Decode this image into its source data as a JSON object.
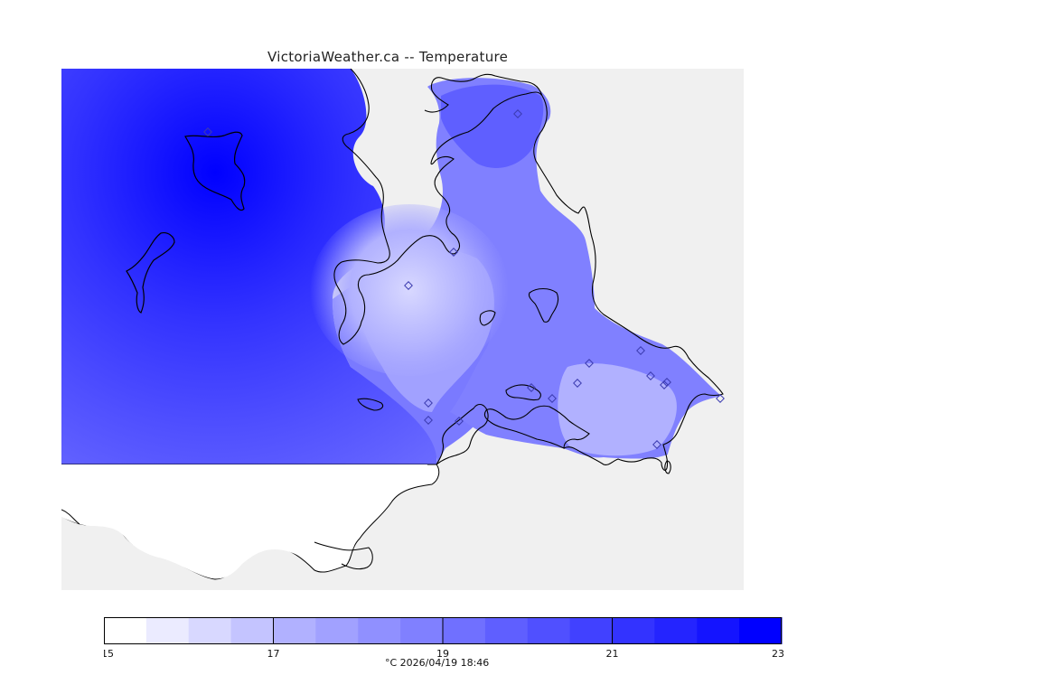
{
  "title": "VictoriaWeather.ca -- Temperature",
  "legend": {
    "min": 15,
    "max": 23,
    "bins": 16,
    "ticks": [
      "15",
      "17",
      "19",
      "21",
      "23"
    ],
    "unit_and_time": "°C  2026/04/19 18:46",
    "colors": [
      "#ffffff",
      "#ebebff",
      "#d8d8ff",
      "#c4c4ff",
      "#b1b1ff",
      "#a1a1ff",
      "#9090ff",
      "#8080ff",
      "#7070ff",
      "#5f5fff",
      "#5050ff",
      "#4141ff",
      "#3333ff",
      "#2424ff",
      "#1414ff",
      "#0000ff"
    ]
  },
  "colors": {
    "land_background": "#f0f0f0",
    "coastline": "#000000",
    "station_marker": "#3b3bb0"
  },
  "icons": [
    "station-marker-icon"
  ]
}
